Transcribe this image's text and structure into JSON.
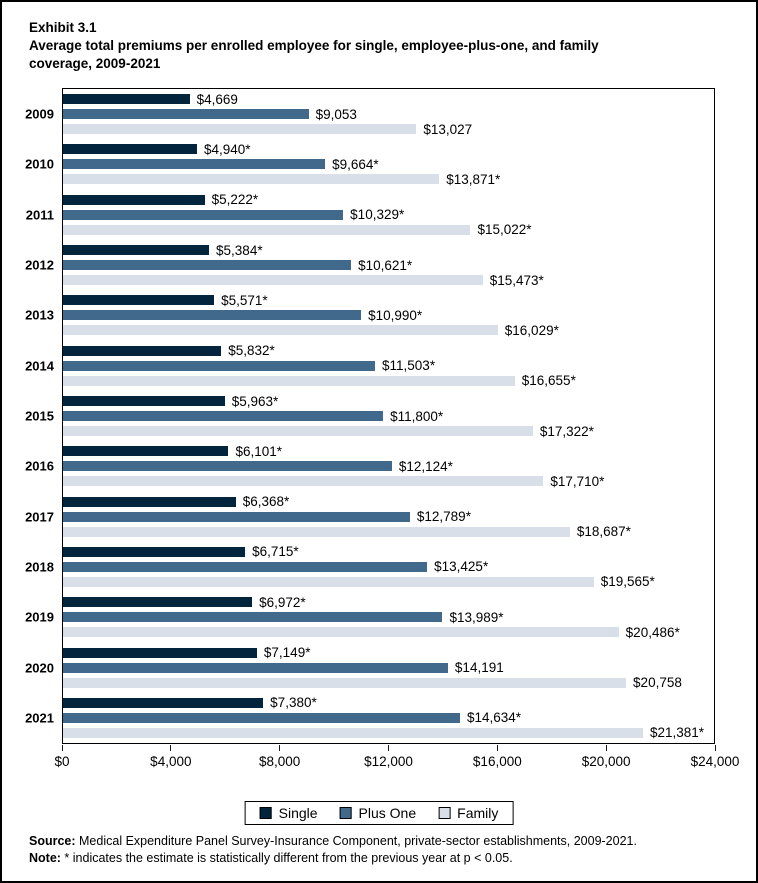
{
  "title": {
    "exhibit": "Exhibit 3.1",
    "line1": "Average total premiums per enrolled employee for single, employee-plus-one, and family",
    "line2": "coverage, 2009-2021"
  },
  "chart_data": {
    "type": "bar",
    "orientation": "horizontal",
    "title": "Average total premiums per enrolled employee for single, employee-plus-one, and family coverage, 2009-2021",
    "categories": [
      "2009",
      "2010",
      "2011",
      "2012",
      "2013",
      "2014",
      "2015",
      "2016",
      "2017",
      "2018",
      "2019",
      "2020",
      "2021"
    ],
    "series": [
      {
        "name": "Single",
        "color": "#02243C",
        "values": [
          4669,
          4940,
          5222,
          5384,
          5571,
          5832,
          5963,
          6101,
          6368,
          6715,
          6972,
          7149,
          7380
        ],
        "labels": [
          "$4,669",
          "$4,940*",
          "$5,222*",
          "$5,384*",
          "$5,571*",
          "$5,832*",
          "$5,963*",
          "$6,101*",
          "$6,368*",
          "$6,715*",
          "$6,972*",
          "$7,149*",
          "$7,380*"
        ]
      },
      {
        "name": "Plus One",
        "color": "#41698C",
        "values": [
          9053,
          9664,
          10329,
          10621,
          10990,
          11503,
          11800,
          12124,
          12789,
          13425,
          13989,
          14191,
          14634
        ],
        "labels": [
          "$9,053",
          "$9,664*",
          "$10,329*",
          "$10,621*",
          "$10,990*",
          "$11,503*",
          "$11,800*",
          "$12,124*",
          "$12,789*",
          "$13,425*",
          "$13,989*",
          "$14,191",
          "$14,634*"
        ]
      },
      {
        "name": "Family",
        "color": "#D9DFE8",
        "values": [
          13027,
          13871,
          15022,
          15473,
          16029,
          16655,
          17322,
          17710,
          18687,
          19565,
          20486,
          20758,
          21381
        ],
        "labels": [
          "$13,027",
          "$13,871*",
          "$15,022*",
          "$15,473*",
          "$16,029*",
          "$16,655*",
          "$17,322*",
          "$17,710*",
          "$18,687*",
          "$19,565*",
          "$20,486*",
          "$20,758",
          "$21,381*"
        ]
      }
    ],
    "xlim": [
      0,
      24000
    ],
    "x_ticks": [
      {
        "value": 0,
        "label": "$0"
      },
      {
        "value": 4000,
        "label": "$4,000"
      },
      {
        "value": 8000,
        "label": "$8,000"
      },
      {
        "value": 12000,
        "label": "$12,000"
      },
      {
        "value": 16000,
        "label": "$16,000"
      },
      {
        "value": 20000,
        "label": "$20,000"
      },
      {
        "value": 24000,
        "label": "$24,000"
      }
    ],
    "grid": false,
    "legend_position": "bottom"
  },
  "footer": {
    "source_label": "Source:",
    "source_text": " Medical Expenditure Panel Survey-Insurance Component, private-sector establishments, 2009-2021.",
    "note_label": "Note:",
    "note_text": " * indicates the estimate is statistically different from the previous year at p < 0.05."
  }
}
